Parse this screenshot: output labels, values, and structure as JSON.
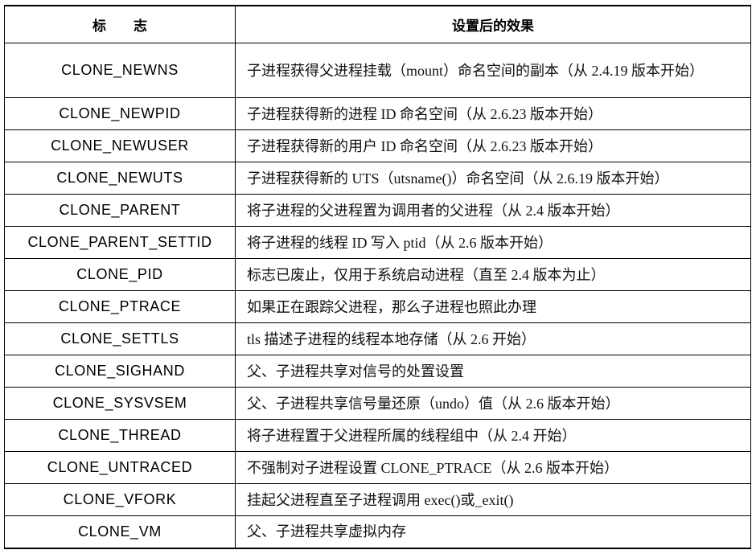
{
  "header": {
    "flag": "标　　志",
    "effect": "设置后的效果"
  },
  "rows": [
    {
      "flag": "CLONE_NEWNS",
      "effect": "子进程获得父进程挂载（mount）命名空间的副本（从 2.4.19 版本开始）"
    },
    {
      "flag": "CLONE_NEWPID",
      "effect": "子进程获得新的进程 ID 命名空间（从 2.6.23 版本开始）"
    },
    {
      "flag": "CLONE_NEWUSER",
      "effect": "子进程获得新的用户 ID 命名空间（从 2.6.23 版本开始）"
    },
    {
      "flag": "CLONE_NEWUTS",
      "effect": "子进程获得新的 UTS（utsname()）命名空间（从 2.6.19 版本开始）"
    },
    {
      "flag": "CLONE_PARENT",
      "effect": "将子进程的父进程置为调用者的父进程（从 2.4 版本开始）"
    },
    {
      "flag": "CLONE_PARENT_SETTID",
      "effect": "将子进程的线程 ID 写入 ptid（从 2.6 版本开始）"
    },
    {
      "flag": "CLONE_PID",
      "effect": "标志已废止，仅用于系统启动进程（直至 2.4 版本为止）"
    },
    {
      "flag": "CLONE_PTRACE",
      "effect": "如果正在跟踪父进程，那么子进程也照此办理"
    },
    {
      "flag": "CLONE_SETTLS",
      "effect": "tls 描述子进程的线程本地存储（从 2.6 开始）"
    },
    {
      "flag": "CLONE_SIGHAND",
      "effect": "父、子进程共享对信号的处置设置"
    },
    {
      "flag": "CLONE_SYSVSEM",
      "effect": "父、子进程共享信号量还原（undo）值（从 2.6 版本开始）"
    },
    {
      "flag": "CLONE_THREAD",
      "effect": "将子进程置于父进程所属的线程组中（从 2.4 开始）"
    },
    {
      "flag": "CLONE_UNTRACED",
      "effect": "不强制对子进程设置 CLONE_PTRACE（从 2.6 版本开始）"
    },
    {
      "flag": "CLONE_VFORK",
      "effect": "挂起父进程直至子进程调用 exec()或_exit()"
    },
    {
      "flag": "CLONE_VM",
      "effect": "父、子进程共享虚拟内存"
    }
  ]
}
